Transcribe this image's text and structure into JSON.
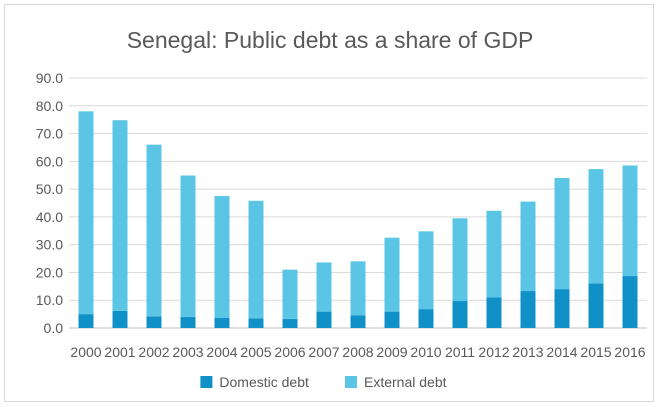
{
  "chart_data": {
    "type": "bar",
    "stacked": true,
    "title": "Senegal: Public debt as a share of GDP",
    "xlabel": "",
    "ylabel": "",
    "ylim": [
      0,
      90
    ],
    "yticks": [
      0,
      10,
      20,
      30,
      40,
      50,
      60,
      70,
      80,
      90
    ],
    "ytick_labels": [
      "0.0",
      "10.0",
      "20.0",
      "30.0",
      "40.0",
      "50.0",
      "60.0",
      "70.0",
      "80.0",
      "90.0"
    ],
    "grid": true,
    "legend_position": "bottom",
    "categories": [
      "2000",
      "2001",
      "2002",
      "2003",
      "2004",
      "2005",
      "2006",
      "2007",
      "2008",
      "2009",
      "2010",
      "2011",
      "2012",
      "2013",
      "2014",
      "2015",
      "2016"
    ],
    "series": [
      {
        "name": "Domestic debt",
        "color": "#0f91c8",
        "values": [
          5.0,
          6.2,
          4.2,
          4.0,
          3.6,
          3.5,
          3.3,
          5.9,
          4.6,
          5.9,
          6.8,
          9.7,
          11.0,
          13.3,
          14.0,
          16.0,
          18.7
        ]
      },
      {
        "name": "External debt",
        "color": "#5bc5e6",
        "values": [
          73.0,
          68.6,
          61.8,
          50.9,
          43.9,
          42.3,
          17.7,
          17.7,
          19.4,
          26.6,
          28.0,
          29.8,
          31.2,
          32.2,
          40.0,
          41.2,
          39.8
        ]
      }
    ]
  }
}
